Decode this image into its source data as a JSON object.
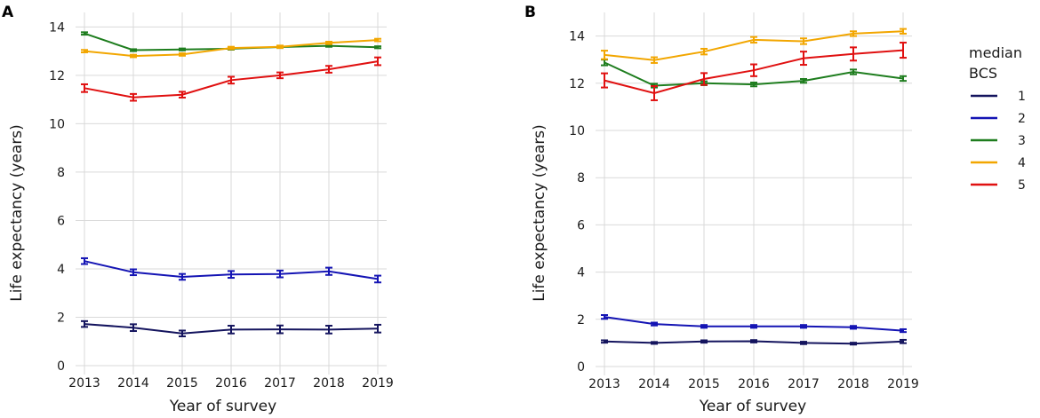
{
  "chart_data": [
    {
      "panel": "A",
      "type": "line",
      "xlabel": "Year of survey",
      "ylabel": "Life expectancy (years)",
      "x": [
        2013,
        2014,
        2015,
        2016,
        2017,
        2018,
        2019
      ],
      "xticks": [
        "2013",
        "2014",
        "2015",
        "2016",
        "2017",
        "2018",
        "2019"
      ],
      "yticks": [
        "0",
        "2",
        "4",
        "6",
        "8",
        "10",
        "12",
        "14"
      ],
      "ylim": [
        0,
        14.6
      ],
      "grid": true,
      "series": [
        {
          "name": "1",
          "color": "#14145e",
          "values": [
            1.72,
            1.57,
            1.33,
            1.49,
            1.5,
            1.49,
            1.53
          ],
          "err": [
            0.12,
            0.14,
            0.12,
            0.16,
            0.16,
            0.16,
            0.16
          ]
        },
        {
          "name": "2",
          "color": "#1414b4",
          "values": [
            4.32,
            3.86,
            3.67,
            3.77,
            3.79,
            3.9,
            3.58
          ],
          "err": [
            0.12,
            0.12,
            0.12,
            0.14,
            0.14,
            0.15,
            0.14
          ]
        },
        {
          "name": "3",
          "color": "#1e7d1e",
          "values": [
            13.73,
            13.04,
            13.07,
            13.1,
            13.17,
            13.22,
            13.16
          ],
          "err": [
            0.05,
            0.04,
            0.04,
            0.04,
            0.04,
            0.04,
            0.04
          ]
        },
        {
          "name": "4",
          "color": "#f2a600",
          "values": [
            13.0,
            12.8,
            12.86,
            13.13,
            13.18,
            13.34,
            13.46
          ],
          "err": [
            0.05,
            0.05,
            0.05,
            0.05,
            0.05,
            0.05,
            0.05
          ]
        },
        {
          "name": "5",
          "color": "#e01010",
          "values": [
            11.47,
            11.09,
            11.2,
            11.8,
            12.0,
            12.25,
            12.58
          ],
          "err": [
            0.16,
            0.14,
            0.12,
            0.14,
            0.12,
            0.14,
            0.16
          ]
        }
      ]
    },
    {
      "panel": "B",
      "type": "line",
      "xlabel": "Year of survey",
      "ylabel": "Life expectancy (years)",
      "x": [
        2013,
        2014,
        2015,
        2016,
        2017,
        2018,
        2019
      ],
      "xticks": [
        "2013",
        "2014",
        "2015",
        "2016",
        "2017",
        "2018",
        "2019"
      ],
      "yticks": [
        "0",
        "2",
        "4",
        "6",
        "8",
        "10",
        "12",
        "14"
      ],
      "ylim": [
        0,
        15.0
      ],
      "grid": true,
      "series": [
        {
          "name": "1",
          "color": "#14145e",
          "values": [
            1.06,
            1.0,
            1.06,
            1.07,
            1.0,
            0.97,
            1.06
          ],
          "err": [
            0.05,
            0.04,
            0.05,
            0.05,
            0.05,
            0.04,
            0.07
          ]
        },
        {
          "name": "2",
          "color": "#1414b4",
          "values": [
            2.1,
            1.8,
            1.7,
            1.7,
            1.7,
            1.66,
            1.52
          ],
          "err": [
            0.08,
            0.06,
            0.06,
            0.06,
            0.06,
            0.06,
            0.06
          ]
        },
        {
          "name": "3",
          "color": "#1e7d1e",
          "values": [
            12.88,
            11.9,
            12.0,
            11.95,
            12.1,
            12.48,
            12.2
          ],
          "err": [
            0.12,
            0.08,
            0.08,
            0.08,
            0.08,
            0.1,
            0.1
          ]
        },
        {
          "name": "4",
          "color": "#f2a600",
          "values": [
            13.2,
            12.98,
            13.34,
            13.84,
            13.78,
            14.1,
            14.2
          ],
          "err": [
            0.18,
            0.12,
            0.12,
            0.12,
            0.12,
            0.1,
            0.1
          ]
        },
        {
          "name": "5",
          "color": "#e01010",
          "values": [
            12.12,
            11.58,
            12.18,
            12.55,
            13.06,
            13.24,
            13.4
          ],
          "err": [
            0.3,
            0.3,
            0.25,
            0.25,
            0.28,
            0.28,
            0.32
          ]
        }
      ]
    }
  ],
  "legend": {
    "title_line1": "median",
    "title_line2": "BCS",
    "items": [
      {
        "label": "1",
        "color": "#14145e"
      },
      {
        "label": "2",
        "color": "#1414b4"
      },
      {
        "label": "3",
        "color": "#1e7d1e"
      },
      {
        "label": "4",
        "color": "#f2a600"
      },
      {
        "label": "5",
        "color": "#e01010"
      }
    ]
  }
}
